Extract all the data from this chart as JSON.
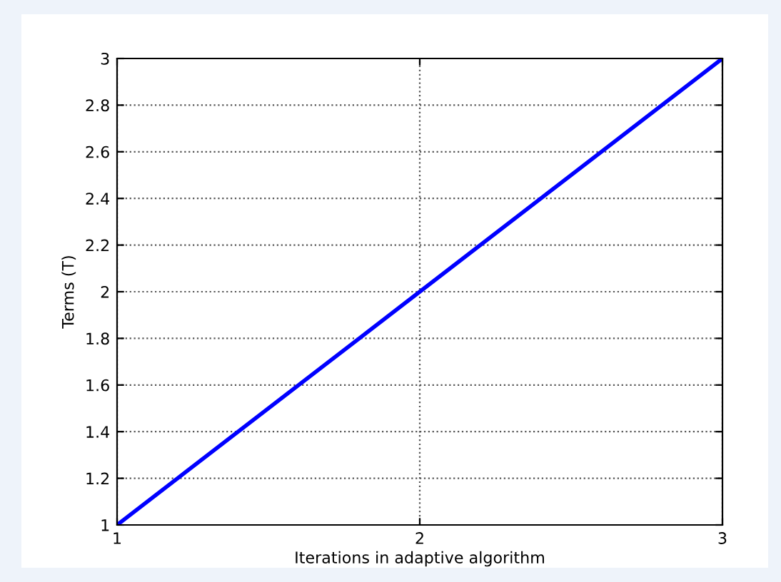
{
  "chart_data": {
    "type": "line",
    "xlabel": "Iterations in adaptive algorithm",
    "ylabel": "Terms (T)",
    "x": [
      1,
      2,
      3
    ],
    "series": [
      {
        "color": "#0000ff",
        "values": [
          1,
          2,
          3
        ]
      }
    ],
    "xlim": [
      1,
      3
    ],
    "xticks": [
      1,
      2,
      3
    ],
    "ylim": [
      1,
      3
    ],
    "yticks": [
      1,
      1.2,
      1.4,
      1.6,
      1.8,
      2,
      2.2,
      2.4,
      2.6,
      2.8,
      3
    ],
    "grid": true,
    "line_style": "solid",
    "marker": "none"
  }
}
